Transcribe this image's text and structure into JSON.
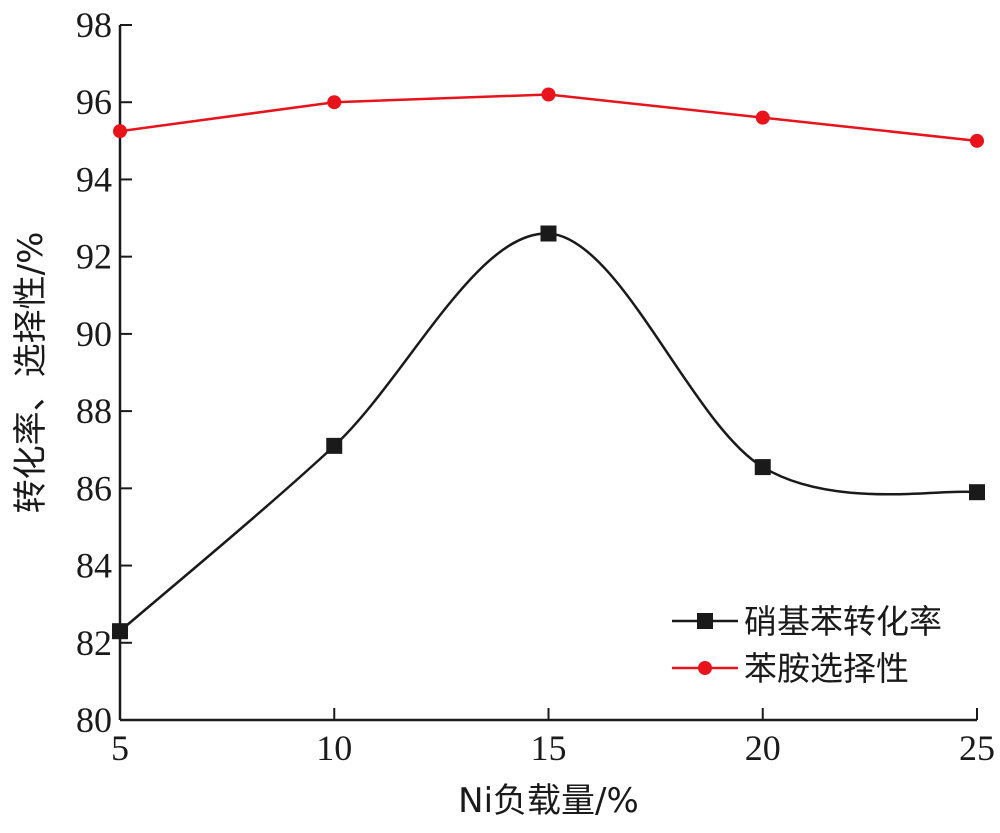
{
  "chart_data": {
    "type": "line",
    "x": [
      5,
      10,
      15,
      20,
      25
    ],
    "xlim": [
      5,
      25
    ],
    "ylim": [
      80,
      98
    ],
    "xticks": [
      5,
      10,
      15,
      20,
      25
    ],
    "yticks": [
      80,
      82,
      84,
      86,
      88,
      90,
      92,
      94,
      96,
      98
    ],
    "xlabel": "Ni负载量/%",
    "ylabel": "转化率、选择性/%",
    "grid": false,
    "legend_position": "bottom-right",
    "series": [
      {
        "name": "硝基苯转化率",
        "color": "#1a1a1a",
        "marker": "square",
        "smooth": true,
        "values": [
          82.3,
          87.1,
          92.6,
          86.55,
          85.9
        ]
      },
      {
        "name": "苯胺选择性",
        "color": "#e8131b",
        "marker": "circle",
        "smooth": false,
        "values": [
          95.25,
          96.0,
          96.2,
          95.6,
          95.0
        ]
      }
    ]
  }
}
